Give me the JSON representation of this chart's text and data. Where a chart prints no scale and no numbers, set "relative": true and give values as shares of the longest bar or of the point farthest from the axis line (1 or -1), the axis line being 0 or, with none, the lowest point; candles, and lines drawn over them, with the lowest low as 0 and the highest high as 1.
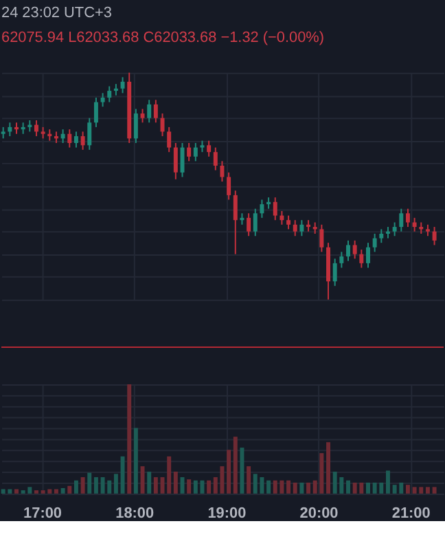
{
  "chart_data": [
    {
      "type": "candlestick",
      "relative": true,
      "grid": true,
      "tick_labels": false,
      "annotations": [
        "24 23:02 UTC+3",
        "62075.94 L62033.68 C62033.68 −1.32 (−0.00%)"
      ],
      "xlim": [
        16.56,
        21.36
      ],
      "xticks": [
        {
          "value": 17,
          "label": null
        },
        {
          "value": 18,
          "label": null
        },
        {
          "value": 19,
          "label": null
        },
        {
          "value": 20,
          "label": null
        },
        {
          "value": 21,
          "label": null
        }
      ],
      "x": [
        16.58,
        16.652,
        16.724,
        16.796,
        16.868,
        16.94,
        17.012,
        17.084,
        17.156,
        17.228,
        17.3,
        17.372,
        17.444,
        17.516,
        17.588,
        17.66,
        17.732,
        17.804,
        17.876,
        17.948,
        18.02,
        18.092,
        18.164,
        18.236,
        18.308,
        18.38,
        18.452,
        18.524,
        18.596,
        18.668,
        18.74,
        18.812,
        18.884,
        18.956,
        19.028,
        19.1,
        19.172,
        19.244,
        19.316,
        19.388,
        19.46,
        19.532,
        19.604,
        19.676,
        19.748,
        19.82,
        19.892,
        19.964,
        20.036,
        20.108,
        20.18,
        20.252,
        20.324,
        20.396,
        20.468,
        20.54,
        20.612,
        20.684,
        20.756,
        20.828,
        20.9,
        20.972,
        21.044,
        21.116,
        21.188,
        21.26
      ],
      "ohlc": [
        [
          0.73,
          0.76,
          0.71,
          0.74
        ],
        [
          0.74,
          0.78,
          0.72,
          0.76
        ],
        [
          0.76,
          0.78,
          0.73,
          0.75
        ],
        [
          0.75,
          0.78,
          0.73,
          0.76
        ],
        [
          0.76,
          0.79,
          0.74,
          0.77
        ],
        [
          0.77,
          0.79,
          0.72,
          0.74
        ],
        [
          0.74,
          0.76,
          0.71,
          0.73
        ],
        [
          0.73,
          0.75,
          0.7,
          0.72
        ],
        [
          0.72,
          0.74,
          0.69,
          0.71
        ],
        [
          0.71,
          0.75,
          0.69,
          0.73
        ],
        [
          0.73,
          0.75,
          0.67,
          0.69
        ],
        [
          0.69,
          0.74,
          0.67,
          0.72
        ],
        [
          0.72,
          0.74,
          0.66,
          0.68
        ],
        [
          0.68,
          0.8,
          0.66,
          0.78
        ],
        [
          0.78,
          0.89,
          0.76,
          0.87
        ],
        [
          0.87,
          0.91,
          0.85,
          0.89
        ],
        [
          0.89,
          0.94,
          0.87,
          0.92
        ],
        [
          0.92,
          0.95,
          0.9,
          0.93
        ],
        [
          0.93,
          0.98,
          0.91,
          0.96
        ],
        [
          0.96,
          1.0,
          0.69,
          0.71
        ],
        [
          0.71,
          0.84,
          0.69,
          0.82
        ],
        [
          0.82,
          0.84,
          0.78,
          0.8
        ],
        [
          0.8,
          0.88,
          0.78,
          0.86
        ],
        [
          0.86,
          0.88,
          0.78,
          0.8
        ],
        [
          0.8,
          0.82,
          0.72,
          0.74
        ],
        [
          0.74,
          0.76,
          0.65,
          0.67
        ],
        [
          0.67,
          0.69,
          0.53,
          0.56
        ],
        [
          0.56,
          0.69,
          0.54,
          0.67
        ],
        [
          0.67,
          0.69,
          0.61,
          0.63
        ],
        [
          0.63,
          0.69,
          0.61,
          0.67
        ],
        [
          0.67,
          0.7,
          0.65,
          0.68
        ],
        [
          0.68,
          0.7,
          0.63,
          0.65
        ],
        [
          0.65,
          0.67,
          0.57,
          0.59
        ],
        [
          0.59,
          0.61,
          0.52,
          0.54
        ],
        [
          0.54,
          0.56,
          0.44,
          0.46
        ],
        [
          0.46,
          0.48,
          0.2,
          0.35
        ],
        [
          0.35,
          0.38,
          0.33,
          0.36
        ],
        [
          0.36,
          0.38,
          0.28,
          0.3
        ],
        [
          0.3,
          0.4,
          0.28,
          0.38
        ],
        [
          0.38,
          0.44,
          0.36,
          0.42
        ],
        [
          0.42,
          0.45,
          0.4,
          0.43
        ],
        [
          0.43,
          0.45,
          0.35,
          0.37
        ],
        [
          0.37,
          0.39,
          0.33,
          0.35
        ],
        [
          0.35,
          0.37,
          0.31,
          0.33
        ],
        [
          0.33,
          0.35,
          0.28,
          0.3
        ],
        [
          0.3,
          0.35,
          0.28,
          0.33
        ],
        [
          0.33,
          0.35,
          0.3,
          0.32
        ],
        [
          0.32,
          0.34,
          0.29,
          0.31
        ],
        [
          0.31,
          0.33,
          0.21,
          0.23
        ],
        [
          0.23,
          0.25,
          0.0,
          0.08
        ],
        [
          0.08,
          0.18,
          0.06,
          0.16
        ],
        [
          0.16,
          0.21,
          0.14,
          0.19
        ],
        [
          0.19,
          0.26,
          0.17,
          0.24
        ],
        [
          0.24,
          0.26,
          0.18,
          0.2
        ],
        [
          0.2,
          0.22,
          0.14,
          0.16
        ],
        [
          0.16,
          0.25,
          0.14,
          0.23
        ],
        [
          0.23,
          0.29,
          0.21,
          0.27
        ],
        [
          0.27,
          0.31,
          0.25,
          0.29
        ],
        [
          0.29,
          0.32,
          0.27,
          0.3
        ],
        [
          0.3,
          0.34,
          0.28,
          0.32
        ],
        [
          0.32,
          0.4,
          0.3,
          0.38
        ],
        [
          0.38,
          0.4,
          0.32,
          0.34
        ],
        [
          0.34,
          0.36,
          0.3,
          0.32
        ],
        [
          0.32,
          0.34,
          0.29,
          0.31
        ],
        [
          0.31,
          0.33,
          0.28,
          0.3
        ],
        [
          0.3,
          0.32,
          0.24,
          0.26
        ]
      ],
      "colors": [
        "#1f8a7a",
        "#1f8a7a",
        "#c2303c",
        "#1f8a7a",
        "#1f8a7a",
        "#c2303c",
        "#c2303c",
        "#c2303c",
        "#c2303c",
        "#1f8a7a",
        "#c2303c",
        "#1f8a7a",
        "#c2303c",
        "#1f8a7a",
        "#1f8a7a",
        "#1f8a7a",
        "#1f8a7a",
        "#1f8a7a",
        "#1f8a7a",
        "#c2303c",
        "#1f8a7a",
        "#c2303c",
        "#1f8a7a",
        "#c2303c",
        "#c2303c",
        "#c2303c",
        "#c2303c",
        "#1f8a7a",
        "#c2303c",
        "#1f8a7a",
        "#1f8a7a",
        "#c2303c",
        "#c2303c",
        "#c2303c",
        "#c2303c",
        "#c2303c",
        "#1f8a7a",
        "#c2303c",
        "#1f8a7a",
        "#1f8a7a",
        "#1f8a7a",
        "#c2303c",
        "#c2303c",
        "#c2303c",
        "#c2303c",
        "#1f8a7a",
        "#c2303c",
        "#c2303c",
        "#c2303c",
        "#c2303c",
        "#1f8a7a",
        "#1f8a7a",
        "#1f8a7a",
        "#c2303c",
        "#c2303c",
        "#1f8a7a",
        "#1f8a7a",
        "#1f8a7a",
        "#1f8a7a",
        "#1f8a7a",
        "#1f8a7a",
        "#c2303c",
        "#c2303c",
        "#c2303c",
        "#c2303c",
        "#c2303c"
      ],
      "ref_lines": [
        {
          "axis": "y",
          "value": -0.21,
          "color": "#b22833"
        }
      ]
    },
    {
      "type": "bar",
      "relative": true,
      "grid": true,
      "tick_labels": "x",
      "xlim": [
        16.56,
        21.36
      ],
      "xticks": [
        {
          "value": 17,
          "label": "17:00"
        },
        {
          "value": 18,
          "label": "18:00"
        },
        {
          "value": 19,
          "label": "19:00"
        },
        {
          "value": 20,
          "label": "20:00"
        },
        {
          "value": 21,
          "label": "21:00"
        }
      ],
      "x": [
        16.58,
        16.652,
        16.724,
        16.796,
        16.868,
        16.94,
        17.012,
        17.084,
        17.156,
        17.228,
        17.3,
        17.372,
        17.444,
        17.516,
        17.588,
        17.66,
        17.732,
        17.804,
        17.876,
        17.948,
        18.02,
        18.092,
        18.164,
        18.236,
        18.308,
        18.38,
        18.452,
        18.524,
        18.596,
        18.668,
        18.74,
        18.812,
        18.884,
        18.956,
        19.028,
        19.1,
        19.172,
        19.244,
        19.316,
        19.388,
        19.46,
        19.532,
        19.604,
        19.676,
        19.748,
        19.82,
        19.892,
        19.964,
        20.036,
        20.108,
        20.18,
        20.252,
        20.324,
        20.396,
        20.468,
        20.54,
        20.612,
        20.684,
        20.756,
        20.828,
        20.9,
        20.972,
        21.044,
        21.116,
        21.188,
        21.26
      ],
      "values": [
        0.04,
        0.04,
        0.04,
        0.03,
        0.06,
        0.03,
        0.03,
        0.04,
        0.04,
        0.05,
        0.07,
        0.12,
        0.15,
        0.19,
        0.15,
        0.15,
        0.12,
        0.18,
        0.34,
        1.0,
        0.6,
        0.25,
        0.2,
        0.15,
        0.15,
        0.34,
        0.2,
        0.15,
        0.13,
        0.12,
        0.12,
        0.12,
        0.15,
        0.25,
        0.4,
        0.52,
        0.42,
        0.25,
        0.18,
        0.15,
        0.12,
        0.12,
        0.12,
        0.12,
        0.1,
        0.1,
        0.1,
        0.12,
        0.37,
        0.47,
        0.2,
        0.15,
        0.12,
        0.1,
        0.1,
        0.1,
        0.1,
        0.1,
        0.21,
        0.08,
        0.1,
        0.08,
        0.06,
        0.06,
        0.06,
        0.06
      ],
      "colors": [
        "#1d5c55",
        "#1d5c55",
        "#6e2a33",
        "#1d5c55",
        "#1d5c55",
        "#6e2a33",
        "#6e2a33",
        "#6e2a33",
        "#6e2a33",
        "#1d5c55",
        "#6e2a33",
        "#1d5c55",
        "#6e2a33",
        "#1d5c55",
        "#1d5c55",
        "#1d5c55",
        "#1d5c55",
        "#1d5c55",
        "#1d5c55",
        "#6e2a33",
        "#1d5c55",
        "#6e2a33",
        "#1d5c55",
        "#6e2a33",
        "#6e2a33",
        "#6e2a33",
        "#6e2a33",
        "#1d5c55",
        "#6e2a33",
        "#1d5c55",
        "#1d5c55",
        "#6e2a33",
        "#6e2a33",
        "#6e2a33",
        "#6e2a33",
        "#6e2a33",
        "#1d5c55",
        "#6e2a33",
        "#1d5c55",
        "#1d5c55",
        "#1d5c55",
        "#6e2a33",
        "#6e2a33",
        "#6e2a33",
        "#6e2a33",
        "#1d5c55",
        "#6e2a33",
        "#6e2a33",
        "#6e2a33",
        "#6e2a33",
        "#1d5c55",
        "#1d5c55",
        "#1d5c55",
        "#6e2a33",
        "#6e2a33",
        "#1d5c55",
        "#1d5c55",
        "#1d5c55",
        "#1d5c55",
        "#1d5c55",
        "#1d5c55",
        "#6e2a33",
        "#6e2a33",
        "#6e2a33",
        "#6e2a33",
        "#6e2a33"
      ]
    }
  ]
}
